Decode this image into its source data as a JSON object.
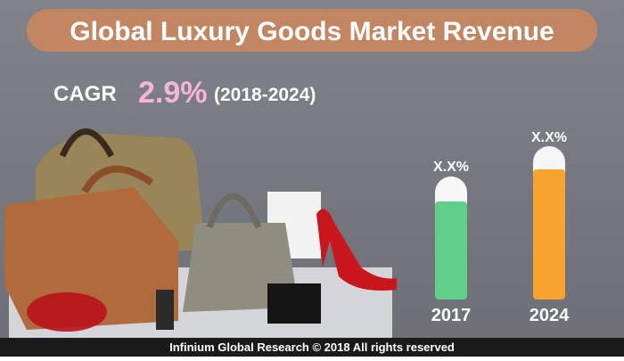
{
  "header": {
    "title": "Global Luxury Goods Market Revenue"
  },
  "cagr": {
    "label": "CAGR",
    "value": "2.9%",
    "period": "(2018-2024)"
  },
  "bars": [
    {
      "label": "X.X%",
      "year": "2017"
    },
    {
      "label": "X.X%",
      "year": "2024"
    }
  ],
  "footer": {
    "text": "Infinium Global Research © 2018 All rights reserved"
  }
}
